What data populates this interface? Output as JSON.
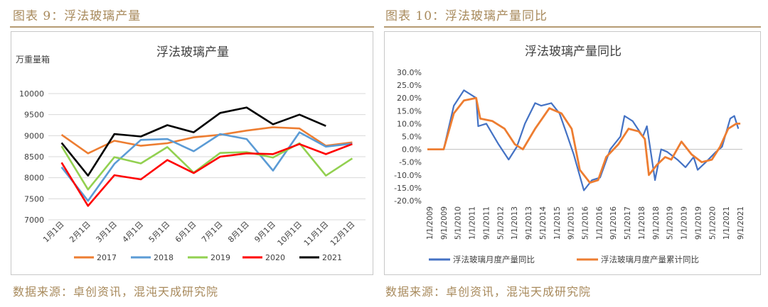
{
  "left": {
    "figure_title": "图表 9：浮法玻璃产量",
    "source": "数据来源：卓创资讯，混沌天成研究院"
  },
  "right": {
    "figure_title": "图表 10：浮法玻璃产量同比",
    "source": "数据来源：卓创资讯，混沌天成研究院"
  },
  "chart_data": [
    {
      "type": "line",
      "title": "浮法玻璃产量",
      "unit_label": "万重量箱",
      "categories": [
        "1月1日",
        "2月1日",
        "3月1日",
        "4月1日",
        "5月1日",
        "6月1日",
        "7月1日",
        "8月1日",
        "9月1日",
        "10月1日",
        "11月1日",
        "12月1日"
      ],
      "ylim": [
        7000,
        10000
      ],
      "yticks": [
        "7000",
        "7500",
        "8000",
        "8500",
        "9000",
        "9500",
        "10000"
      ],
      "grid": true,
      "legend_position": "bottom",
      "series": [
        {
          "name": "2017",
          "color": "#ed7d31",
          "values": [
            9020,
            8580,
            8880,
            8760,
            8820,
            8960,
            9020,
            9120,
            9200,
            9170,
            8760,
            8840
          ]
        },
        {
          "name": "2018",
          "color": "#5b9bd5",
          "values": [
            8250,
            7450,
            8330,
            8900,
            8920,
            8630,
            9040,
            8920,
            8170,
            9080,
            8740,
            8810
          ]
        },
        {
          "name": "2019",
          "color": "#92d050",
          "values": [
            8750,
            7720,
            8490,
            8340,
            8730,
            8120,
            8590,
            8610,
            8480,
            8820,
            8050,
            8460
          ]
        },
        {
          "name": "2020",
          "color": "#ff0000",
          "values": [
            8360,
            7330,
            8060,
            7960,
            8420,
            8110,
            8500,
            8580,
            8560,
            8800,
            8560,
            8800
          ]
        },
        {
          "name": "2021",
          "color": "#000000",
          "values": [
            8830,
            8050,
            9040,
            8980,
            9250,
            9080,
            9540,
            9670,
            9270,
            9500,
            9230,
            null
          ]
        }
      ]
    },
    {
      "type": "line",
      "title": "浮法玻璃产量同比",
      "x_tick_labels": [
        "1/1/2009",
        "9/1/2009",
        "5/1/2010",
        "1/1/2011",
        "9/1/2011",
        "5/1/2012",
        "1/1/2013",
        "9/1/2013",
        "5/1/2014",
        "1/1/2015",
        "9/1/2015",
        "5/1/2016",
        "1/1/2016",
        "9/1/2016",
        "5/1/2017",
        "1/1/2018",
        "9/1/2018",
        "5/1/2019",
        "1/1/2019",
        "9/1/2019",
        "5/1/2020",
        "1/1/2021",
        "9/1/2021"
      ],
      "ylim": [
        -20,
        30
      ],
      "yticks": [
        "30.0%",
        "25.0%",
        "20.0%",
        "15.0%",
        "10.0%",
        "5.0%",
        "0.0%",
        "-5.0%",
        "-10.0%",
        "-15.0%",
        "-20.0%"
      ],
      "legend_position": "bottom",
      "series": [
        {
          "name": "浮法玻璃月度产量同比",
          "color": "#4472c4",
          "x": [
            "2009-01",
            "2009-06",
            "2009-09",
            "2010-02",
            "2010-07",
            "2011-01",
            "2011-02",
            "2011-06",
            "2011-12",
            "2012-05",
            "2012-09",
            "2013-01",
            "2013-06",
            "2013-09",
            "2014-02",
            "2014-06",
            "2014-10",
            "2015-01",
            "2015-06",
            "2015-10",
            "2016-02",
            "2016-07",
            "2016-12",
            "2017-02",
            "2017-06",
            "2017-11",
            "2018-01",
            "2018-05",
            "2018-08",
            "2018-11",
            "2019-04",
            "2019-08",
            "2019-12",
            "2020-02",
            "2020-06",
            "2020-11",
            "2021-02",
            "2021-06",
            "2021-08",
            "2021-10"
          ],
          "values": [
            0,
            0,
            0,
            17,
            23,
            20,
            9,
            10,
            2,
            -4,
            1,
            10,
            18,
            17,
            18,
            14,
            5,
            -2,
            -16,
            -12,
            -11,
            0,
            5,
            13,
            11,
            5,
            9,
            -12,
            0,
            -1,
            -4,
            -7,
            -3,
            -8,
            -5,
            -1,
            1,
            12,
            13,
            8
          ]
        },
        {
          "name": "浮法玻璃月度产量累计同比",
          "color": "#ed7d31",
          "x": [
            "2009-01",
            "2009-06",
            "2009-09",
            "2010-02",
            "2010-07",
            "2011-01",
            "2011-03",
            "2011-09",
            "2012-03",
            "2012-08",
            "2012-12",
            "2013-06",
            "2014-01",
            "2014-07",
            "2014-12",
            "2015-04",
            "2015-09",
            "2016-01",
            "2016-05",
            "2016-11",
            "2017-04",
            "2017-09",
            "2017-12",
            "2018-02",
            "2018-06",
            "2018-10",
            "2019-01",
            "2019-06",
            "2019-11",
            "2020-04",
            "2020-09",
            "2021-01",
            "2021-05",
            "2021-09",
            "2021-11"
          ],
          "values": [
            0,
            0,
            0,
            14,
            19,
            20,
            12,
            11,
            8,
            2,
            0,
            8,
            16,
            14,
            8,
            -8,
            -13,
            -12,
            -3,
            2,
            8,
            7,
            4,
            -10,
            -6,
            -3,
            -4,
            3,
            -2,
            -5,
            -4,
            1,
            8,
            10,
            10
          ]
        }
      ]
    }
  ]
}
